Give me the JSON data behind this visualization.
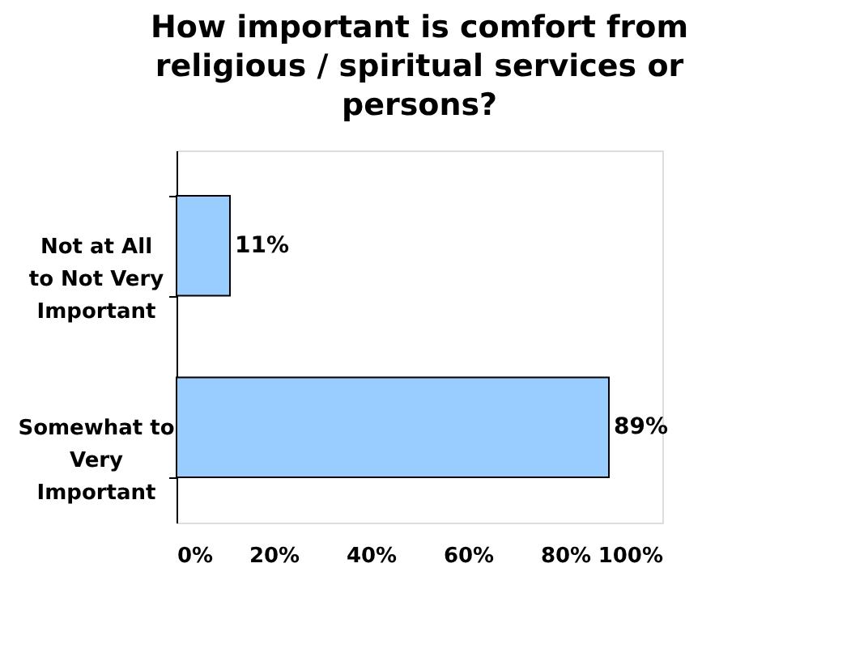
{
  "chart_data": {
    "type": "bar",
    "orientation": "horizontal",
    "title": "How important is comfort from religious / spiritual services or persons?",
    "categories": [
      "Not at All to Not Very Important",
      "Somewhat to Very Important"
    ],
    "values": [
      11,
      89
    ],
    "color": "#99ccff",
    "value_labels": [
      "11%",
      "89%"
    ],
    "xlim": [
      0,
      100
    ],
    "xticks": [
      {
        "value": 0,
        "label": "0%"
      },
      {
        "value": 20,
        "label": "20%"
      },
      {
        "value": 40,
        "label": "40%"
      },
      {
        "value": 60,
        "label": "60%"
      },
      {
        "value": 80,
        "label": "80%"
      },
      {
        "value": 100,
        "label": "100%"
      }
    ],
    "grid": false
  }
}
